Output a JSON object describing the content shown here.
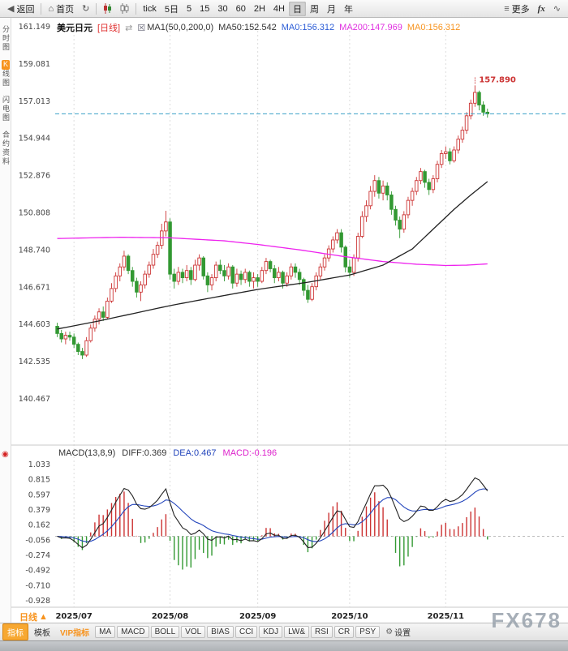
{
  "icons": {
    "back": "◀",
    "home": "⌂",
    "refresh": "↻",
    "more": "≡",
    "swap": "⇄",
    "checkbox": "☒",
    "indicator": "◉",
    "gear": "⚙",
    "line_chart": "∿",
    "up_arrow": "▲"
  },
  "toolbar": {
    "back_label": "返回",
    "home_label": "首页",
    "periods": [
      "tick",
      "5日",
      "5",
      "15",
      "30",
      "60",
      "2H",
      "4H",
      "日",
      "周",
      "月",
      "年"
    ],
    "active_period": "日",
    "more_label": "更多",
    "fx_label": "fx"
  },
  "sidebar": {
    "items": [
      {
        "label": "分时图",
        "active": false
      },
      {
        "label": "K线图",
        "active": true
      },
      {
        "label": "闪电图",
        "active": false
      },
      {
        "label": "合约资料",
        "active": false
      }
    ]
  },
  "price_header": {
    "symbol": "美元日元",
    "period_tag": "[日线]",
    "ma_settings": "MA1(50,0,200,0)",
    "ma50": "MA50:152.542",
    "ma0_blue": "MA0:156.312",
    "ma200": "MA200:147.969",
    "ma0_orange": "MA0:156.312"
  },
  "macd_header": {
    "title": "MACD(13,8,9)",
    "diff": "DIFF:0.369",
    "dea": "DEA:0.467",
    "macd": "MACD:-0.196"
  },
  "bottom": {
    "period_label": "日线",
    "watermark": "FX678",
    "tabs": [
      {
        "label": "指标",
        "style": "active"
      },
      {
        "label": "模板",
        "style": "flat"
      },
      {
        "label": "VIP指标",
        "style": "vip"
      },
      {
        "label": "MA",
        "style": "btn"
      },
      {
        "label": "MACD",
        "style": "btn"
      },
      {
        "label": "BOLL",
        "style": "btn"
      },
      {
        "label": "VOL",
        "style": "btn"
      },
      {
        "label": "BIAS",
        "style": "btn"
      },
      {
        "label": "CCI",
        "style": "btn"
      },
      {
        "label": "KDJ",
        "style": "btn"
      },
      {
        "label": "LW&",
        "style": "btn"
      },
      {
        "label": "RSI",
        "style": "btn"
      },
      {
        "label": "CR",
        "style": "btn"
      },
      {
        "label": "PSY",
        "style": "btn"
      },
      {
        "label": "设置",
        "style": "settings"
      }
    ]
  },
  "chart_data": {
    "type": "candlestick",
    "title": "美元日元 日线",
    "indicator": "MACD",
    "macd_params": [
      13,
      8,
      9
    ],
    "current_price_line": 156.312,
    "peak_annotation": {
      "label": "157.890",
      "index": 100
    },
    "right_padding_slots": 18,
    "price_axis_ticks": [
      "161.149",
      "159.081",
      "157.013",
      "154.944",
      "152.876",
      "150.808",
      "148.740",
      "146.671",
      "144.603",
      "142.535",
      "140.467"
    ],
    "macd_axis_ticks": [
      "1.033",
      "0.815",
      "0.597",
      "0.379",
      "0.162",
      "-0.056",
      "-0.274",
      "-0.492",
      "-0.710",
      "-0.928"
    ],
    "x_labels": [
      {
        "label": "2025/07",
        "index": 4
      },
      {
        "label": "2025/08",
        "index": 27
      },
      {
        "label": "2025/09",
        "index": 48
      },
      {
        "label": "2025/10",
        "index": 70
      },
      {
        "label": "2025/11",
        "index": 93
      }
    ],
    "candles": [
      [
        144.5,
        144.7,
        143.9,
        144.1
      ],
      [
        144.1,
        144.3,
        143.6,
        143.8
      ],
      [
        143.8,
        144.2,
        143.5,
        144.0
      ],
      [
        144.0,
        144.2,
        143.7,
        143.9
      ],
      [
        143.9,
        144.1,
        143.3,
        143.5
      ],
      [
        143.5,
        143.6,
        142.9,
        143.1
      ],
      [
        143.1,
        143.3,
        142.68,
        142.9
      ],
      [
        142.9,
        143.9,
        142.8,
        143.7
      ],
      [
        143.7,
        144.6,
        143.6,
        144.4
      ],
      [
        144.4,
        145.1,
        144.2,
        144.9
      ],
      [
        144.9,
        145.5,
        144.6,
        145.3
      ],
      [
        145.3,
        145.6,
        144.8,
        145.0
      ],
      [
        145.0,
        146.1,
        144.9,
        145.9
      ],
      [
        145.9,
        146.9,
        145.8,
        146.6
      ],
      [
        146.6,
        147.5,
        146.4,
        147.3
      ],
      [
        147.3,
        148.0,
        147.0,
        147.8
      ],
      [
        147.8,
        148.7,
        147.6,
        148.4
      ],
      [
        148.4,
        148.5,
        147.4,
        147.6
      ],
      [
        147.6,
        147.8,
        146.7,
        147.0
      ],
      [
        147.0,
        147.2,
        146.1,
        146.4
      ],
      [
        146.4,
        147.0,
        145.9,
        146.8
      ],
      [
        146.8,
        147.6,
        146.6,
        147.4
      ],
      [
        147.4,
        148.1,
        147.2,
        147.9
      ],
      [
        147.9,
        148.8,
        147.7,
        148.5
      ],
      [
        148.5,
        149.2,
        148.3,
        149.0
      ],
      [
        149.0,
        150.2,
        148.8,
        149.8
      ],
      [
        149.8,
        150.92,
        149.5,
        150.3
      ],
      [
        150.3,
        150.5,
        147.1,
        147.4
      ],
      [
        147.4,
        147.7,
        146.6,
        147.0
      ],
      [
        147.0,
        147.8,
        146.8,
        147.5
      ],
      [
        147.5,
        147.7,
        146.9,
        147.2
      ],
      [
        147.2,
        147.9,
        147.0,
        147.6
      ],
      [
        147.6,
        147.8,
        146.8,
        147.1
      ],
      [
        147.1,
        148.2,
        147.0,
        147.9
      ],
      [
        147.9,
        148.5,
        147.6,
        148.3
      ],
      [
        148.3,
        148.4,
        147.1,
        147.3
      ],
      [
        147.3,
        147.5,
        146.4,
        146.8
      ],
      [
        146.8,
        147.4,
        146.5,
        147.2
      ],
      [
        147.2,
        148.1,
        147.0,
        147.9
      ],
      [
        147.9,
        148.2,
        147.4,
        147.6
      ],
      [
        147.6,
        147.9,
        147.0,
        147.3
      ],
      [
        147.3,
        148.0,
        147.1,
        147.8
      ],
      [
        147.8,
        147.9,
        146.6,
        146.9
      ],
      [
        146.9,
        147.7,
        146.7,
        147.4
      ],
      [
        147.4,
        147.6,
        146.8,
        147.1
      ],
      [
        147.1,
        147.7,
        146.9,
        147.5
      ],
      [
        147.5,
        147.6,
        146.7,
        147.0
      ],
      [
        147.0,
        147.5,
        146.6,
        147.2
      ],
      [
        147.2,
        147.4,
        146.7,
        147.0
      ],
      [
        147.0,
        147.8,
        146.9,
        147.6
      ],
      [
        147.6,
        148.3,
        147.4,
        148.1
      ],
      [
        148.1,
        148.2,
        147.5,
        147.7
      ],
      [
        147.7,
        147.9,
        146.9,
        147.2
      ],
      [
        147.2,
        147.8,
        147.0,
        147.5
      ],
      [
        147.5,
        147.6,
        146.6,
        146.9
      ],
      [
        146.9,
        147.5,
        146.7,
        147.3
      ],
      [
        147.3,
        148.0,
        147.1,
        147.8
      ],
      [
        147.8,
        148.0,
        147.2,
        147.5
      ],
      [
        147.5,
        147.7,
        146.8,
        147.1
      ],
      [
        147.1,
        147.2,
        146.2,
        146.5
      ],
      [
        146.5,
        146.8,
        145.8,
        146.0
      ],
      [
        146.0,
        146.9,
        145.9,
        146.7
      ],
      [
        146.7,
        147.5,
        146.5,
        147.3
      ],
      [
        147.3,
        148.0,
        147.1,
        147.8
      ],
      [
        147.8,
        148.5,
        147.6,
        148.3
      ],
      [
        148.3,
        149.0,
        148.1,
        148.8
      ],
      [
        148.8,
        149.5,
        148.6,
        149.3
      ],
      [
        149.3,
        149.9,
        149.1,
        149.7
      ],
      [
        149.7,
        149.9,
        148.6,
        148.9
      ],
      [
        148.9,
        149.0,
        147.5,
        147.8
      ],
      [
        147.8,
        148.2,
        147.2,
        147.5
      ],
      [
        147.5,
        148.5,
        147.3,
        148.3
      ],
      [
        148.3,
        149.7,
        148.1,
        149.5
      ],
      [
        149.5,
        150.9,
        149.4,
        150.6
      ],
      [
        150.6,
        151.5,
        150.3,
        151.2
      ],
      [
        151.2,
        152.3,
        151.0,
        152.0
      ],
      [
        152.0,
        152.9,
        151.7,
        152.6
      ],
      [
        152.6,
        152.8,
        151.6,
        151.9
      ],
      [
        151.9,
        152.6,
        151.5,
        152.3
      ],
      [
        152.3,
        152.5,
        151.5,
        151.8
      ],
      [
        151.8,
        152.0,
        150.7,
        151.0
      ],
      [
        151.0,
        151.2,
        150.1,
        150.4
      ],
      [
        150.4,
        150.6,
        149.4,
        149.9
      ],
      [
        149.9,
        150.9,
        149.7,
        150.7
      ],
      [
        150.7,
        151.7,
        150.5,
        151.5
      ],
      [
        151.5,
        152.2,
        151.2,
        152.0
      ],
      [
        152.0,
        152.8,
        151.8,
        152.6
      ],
      [
        152.6,
        153.3,
        152.4,
        153.1
      ],
      [
        153.1,
        153.2,
        152.2,
        152.5
      ],
      [
        152.5,
        152.7,
        151.8,
        152.1
      ],
      [
        152.1,
        152.9,
        151.9,
        152.7
      ],
      [
        152.7,
        153.7,
        152.5,
        153.5
      ],
      [
        153.5,
        154.3,
        153.3,
        154.1
      ],
      [
        154.1,
        154.5,
        153.8,
        154.2
      ],
      [
        154.2,
        154.4,
        153.5,
        153.7
      ],
      [
        153.7,
        154.5,
        153.6,
        154.3
      ],
      [
        154.3,
        155.1,
        154.1,
        154.9
      ],
      [
        154.9,
        155.6,
        154.7,
        155.4
      ],
      [
        155.4,
        156.4,
        155.2,
        156.2
      ],
      [
        156.2,
        157.1,
        156.0,
        156.9
      ],
      [
        156.9,
        157.89,
        156.7,
        157.5
      ],
      [
        157.5,
        157.6,
        156.5,
        156.8
      ],
      [
        156.8,
        157.0,
        156.2,
        156.4
      ],
      [
        156.4,
        156.6,
        156.1,
        156.312
      ]
    ],
    "ma50_keypoints": [
      [
        0,
        144.35
      ],
      [
        10,
        144.8
      ],
      [
        20,
        145.3
      ],
      [
        27,
        145.65
      ],
      [
        35,
        146.0
      ],
      [
        48,
        146.55
      ],
      [
        60,
        146.95
      ],
      [
        70,
        147.35
      ],
      [
        78,
        147.9
      ],
      [
        85,
        148.8
      ],
      [
        90,
        149.9
      ],
      [
        95,
        151.0
      ],
      [
        99,
        151.8
      ],
      [
        103,
        152.542
      ]
    ],
    "ma200_keypoints": [
      [
        0,
        149.38
      ],
      [
        15,
        149.45
      ],
      [
        27,
        149.42
      ],
      [
        40,
        149.25
      ],
      [
        48,
        149.05
      ],
      [
        58,
        148.75
      ],
      [
        68,
        148.4
      ],
      [
        78,
        148.1
      ],
      [
        86,
        147.95
      ],
      [
        93,
        147.88
      ],
      [
        98,
        147.9
      ],
      [
        103,
        147.969
      ]
    ],
    "colors": {
      "up": "#cc3333",
      "down": "#339933",
      "ma50": "#222222",
      "ma200": "#ee22ee",
      "current_line": "#3aa0c8",
      "diff_line": "#222222",
      "dea_line": "#2244bb",
      "hist_pos": "#cc3333",
      "hist_neg": "#339933"
    }
  }
}
